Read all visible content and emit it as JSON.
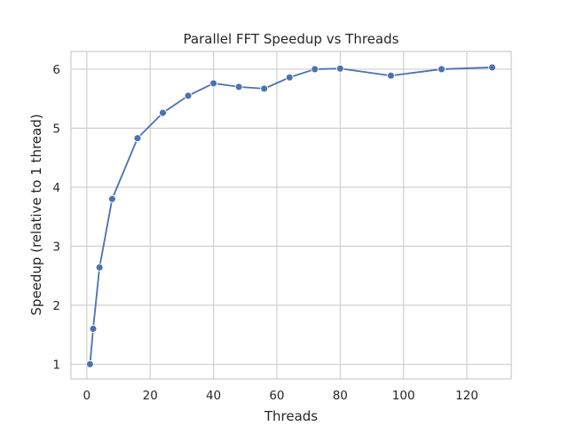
{
  "chart_data": {
    "type": "line",
    "title": "Parallel FFT Speedup vs Threads",
    "xlabel": "Threads",
    "ylabel": "Speedup (relative to 1 thread)",
    "xlim": [
      -5,
      134
    ],
    "ylim": [
      0.75,
      6.3
    ],
    "xticks": [
      0,
      20,
      40,
      60,
      80,
      100,
      120
    ],
    "yticks": [
      1,
      2,
      3,
      4,
      5,
      6
    ],
    "grid": true,
    "series": [
      {
        "color": "#4c72b0",
        "marker": "circle",
        "x": [
          1,
          2,
          4,
          8,
          16,
          24,
          32,
          40,
          48,
          56,
          64,
          72,
          80,
          96,
          112,
          128
        ],
        "y": [
          1.0,
          1.6,
          2.64,
          3.8,
          4.83,
          5.26,
          5.55,
          5.76,
          5.7,
          5.67,
          5.86,
          6.0,
          6.01,
          5.89,
          6.0,
          6.03
        ]
      }
    ]
  }
}
